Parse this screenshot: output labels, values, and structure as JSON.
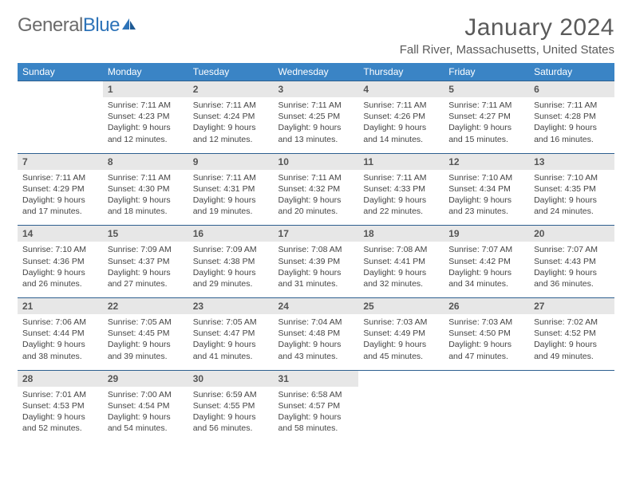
{
  "brand": {
    "general": "General",
    "blue": "Blue"
  },
  "title": {
    "month": "January 2024",
    "location": "Fall River, Massachusetts, United States"
  },
  "colors": {
    "header_bg": "#3a84c5",
    "header_text": "#ffffff",
    "daynum_bg": "#e7e7e7",
    "border": "#2d5f8f",
    "text": "#444444",
    "title_text": "#5a5a5a",
    "logo_gray": "#6b6b6b",
    "logo_blue": "#2d73b8"
  },
  "typography": {
    "month_fontsize": 30,
    "location_fontsize": 15,
    "header_fontsize": 12,
    "daynum_fontsize": 12,
    "cell_fontsize": 10.5
  },
  "dayNames": [
    "Sunday",
    "Monday",
    "Tuesday",
    "Wednesday",
    "Thursday",
    "Friday",
    "Saturday"
  ],
  "weeks": [
    {
      "nums": [
        "",
        "1",
        "2",
        "3",
        "4",
        "5",
        "6"
      ],
      "cells": [
        "",
        "Sunrise: 7:11 AM\nSunset: 4:23 PM\nDaylight: 9 hours and 12 minutes.",
        "Sunrise: 7:11 AM\nSunset: 4:24 PM\nDaylight: 9 hours and 12 minutes.",
        "Sunrise: 7:11 AM\nSunset: 4:25 PM\nDaylight: 9 hours and 13 minutes.",
        "Sunrise: 7:11 AM\nSunset: 4:26 PM\nDaylight: 9 hours and 14 minutes.",
        "Sunrise: 7:11 AM\nSunset: 4:27 PM\nDaylight: 9 hours and 15 minutes.",
        "Sunrise: 7:11 AM\nSunset: 4:28 PM\nDaylight: 9 hours and 16 minutes."
      ]
    },
    {
      "nums": [
        "7",
        "8",
        "9",
        "10",
        "11",
        "12",
        "13"
      ],
      "cells": [
        "Sunrise: 7:11 AM\nSunset: 4:29 PM\nDaylight: 9 hours and 17 minutes.",
        "Sunrise: 7:11 AM\nSunset: 4:30 PM\nDaylight: 9 hours and 18 minutes.",
        "Sunrise: 7:11 AM\nSunset: 4:31 PM\nDaylight: 9 hours and 19 minutes.",
        "Sunrise: 7:11 AM\nSunset: 4:32 PM\nDaylight: 9 hours and 20 minutes.",
        "Sunrise: 7:11 AM\nSunset: 4:33 PM\nDaylight: 9 hours and 22 minutes.",
        "Sunrise: 7:10 AM\nSunset: 4:34 PM\nDaylight: 9 hours and 23 minutes.",
        "Sunrise: 7:10 AM\nSunset: 4:35 PM\nDaylight: 9 hours and 24 minutes."
      ]
    },
    {
      "nums": [
        "14",
        "15",
        "16",
        "17",
        "18",
        "19",
        "20"
      ],
      "cells": [
        "Sunrise: 7:10 AM\nSunset: 4:36 PM\nDaylight: 9 hours and 26 minutes.",
        "Sunrise: 7:09 AM\nSunset: 4:37 PM\nDaylight: 9 hours and 27 minutes.",
        "Sunrise: 7:09 AM\nSunset: 4:38 PM\nDaylight: 9 hours and 29 minutes.",
        "Sunrise: 7:08 AM\nSunset: 4:39 PM\nDaylight: 9 hours and 31 minutes.",
        "Sunrise: 7:08 AM\nSunset: 4:41 PM\nDaylight: 9 hours and 32 minutes.",
        "Sunrise: 7:07 AM\nSunset: 4:42 PM\nDaylight: 9 hours and 34 minutes.",
        "Sunrise: 7:07 AM\nSunset: 4:43 PM\nDaylight: 9 hours and 36 minutes."
      ]
    },
    {
      "nums": [
        "21",
        "22",
        "23",
        "24",
        "25",
        "26",
        "27"
      ],
      "cells": [
        "Sunrise: 7:06 AM\nSunset: 4:44 PM\nDaylight: 9 hours and 38 minutes.",
        "Sunrise: 7:05 AM\nSunset: 4:45 PM\nDaylight: 9 hours and 39 minutes.",
        "Sunrise: 7:05 AM\nSunset: 4:47 PM\nDaylight: 9 hours and 41 minutes.",
        "Sunrise: 7:04 AM\nSunset: 4:48 PM\nDaylight: 9 hours and 43 minutes.",
        "Sunrise: 7:03 AM\nSunset: 4:49 PM\nDaylight: 9 hours and 45 minutes.",
        "Sunrise: 7:03 AM\nSunset: 4:50 PM\nDaylight: 9 hours and 47 minutes.",
        "Sunrise: 7:02 AM\nSunset: 4:52 PM\nDaylight: 9 hours and 49 minutes."
      ]
    },
    {
      "nums": [
        "28",
        "29",
        "30",
        "31",
        "",
        "",
        ""
      ],
      "cells": [
        "Sunrise: 7:01 AM\nSunset: 4:53 PM\nDaylight: 9 hours and 52 minutes.",
        "Sunrise: 7:00 AM\nSunset: 4:54 PM\nDaylight: 9 hours and 54 minutes.",
        "Sunrise: 6:59 AM\nSunset: 4:55 PM\nDaylight: 9 hours and 56 minutes.",
        "Sunrise: 6:58 AM\nSunset: 4:57 PM\nDaylight: 9 hours and 58 minutes.",
        "",
        "",
        ""
      ]
    }
  ]
}
